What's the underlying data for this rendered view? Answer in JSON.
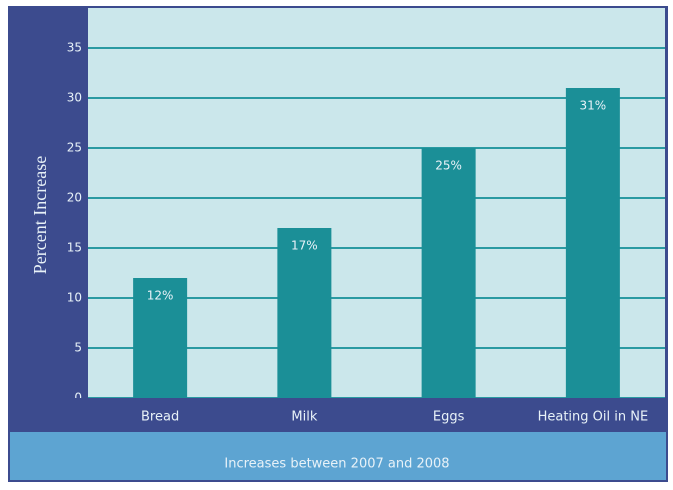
{
  "chart_data": {
    "type": "bar",
    "y_label": "Percent Increase",
    "x_label": "Increases between 2007 and 2008",
    "categories": [
      "Bread",
      "Milk",
      "Eggs",
      "Heating Oil in NE"
    ],
    "values": [
      12,
      17,
      25,
      31
    ],
    "value_labels": [
      "12%",
      "17%",
      "25%",
      "31%"
    ],
    "color": "#1b8f97",
    "ylim": [
      0,
      39
    ],
    "yticks": [
      0,
      5,
      10,
      15,
      20,
      25,
      30,
      35
    ],
    "grid": true
  }
}
